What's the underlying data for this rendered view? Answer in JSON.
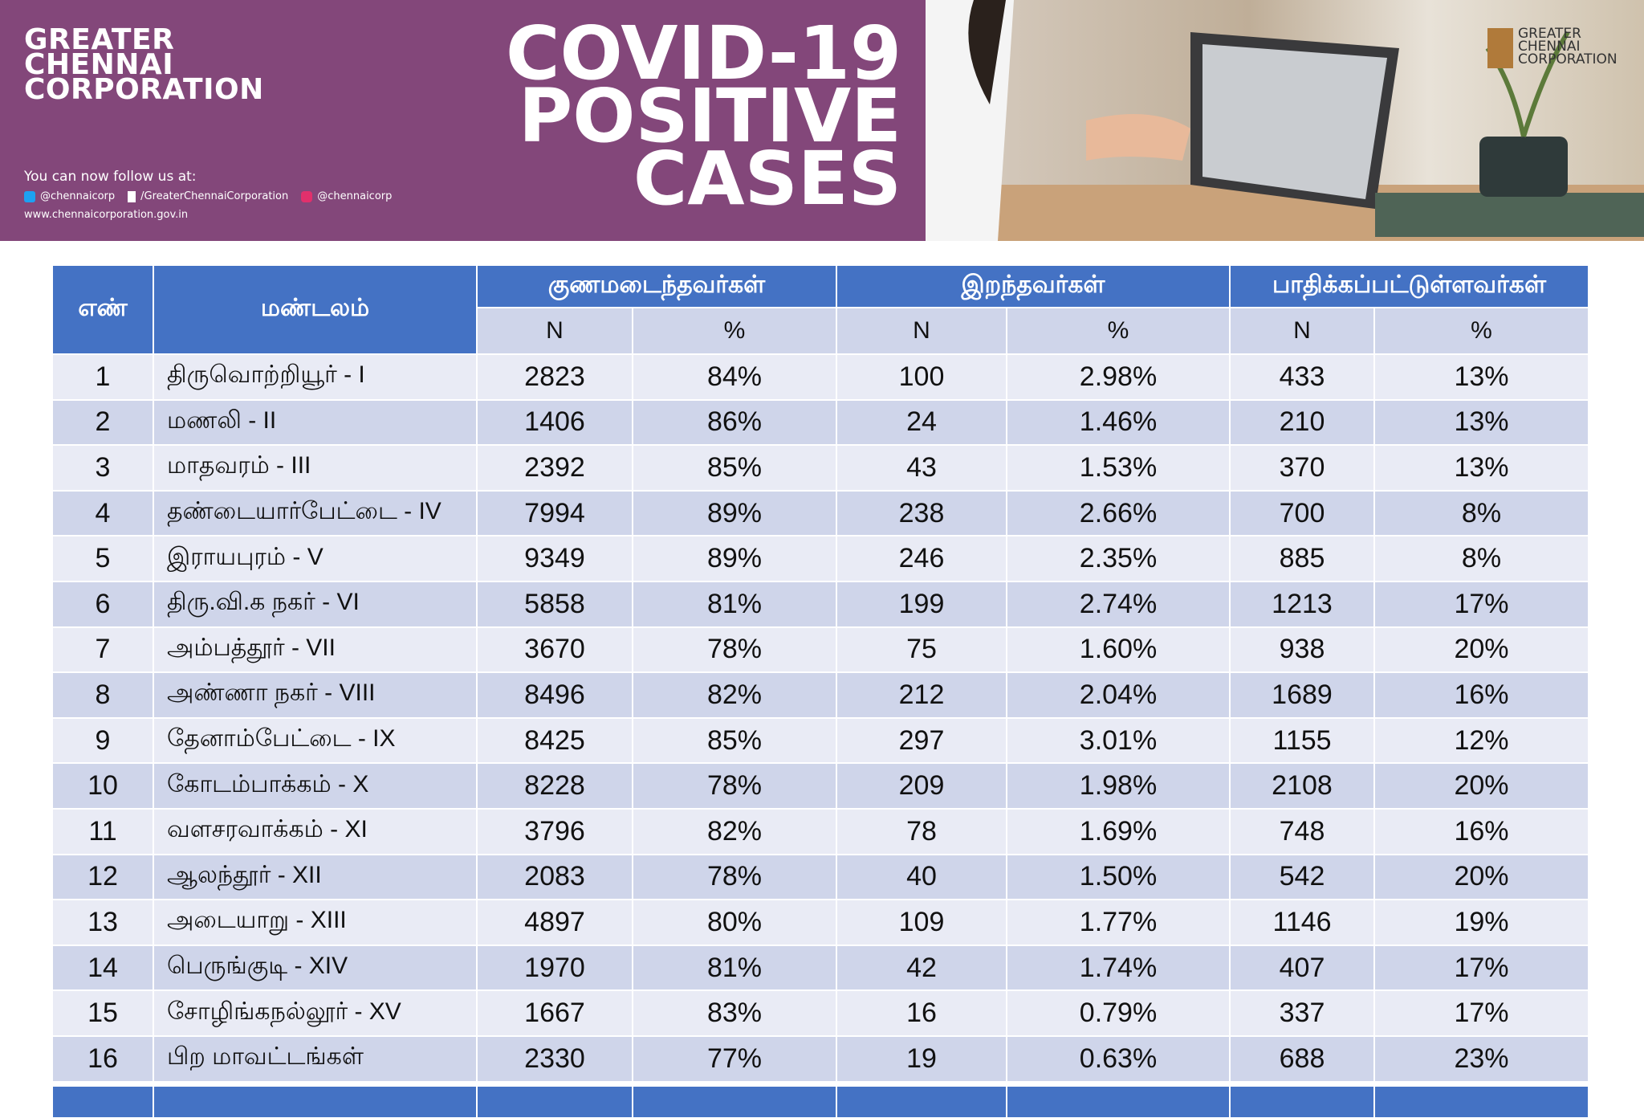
{
  "header": {
    "org_name": [
      "GREATER",
      "CHENNAI",
      "CORPORATION"
    ],
    "title": [
      "COVID-19",
      "POSITIVE",
      "CASES"
    ],
    "follow": "You can now follow us at:",
    "twitter": "@chennaicorp",
    "facebook": "/GreaterChennaiCorporation",
    "instagram": "@chennaicorp",
    "website": "www.chennaicorporation.gov.in",
    "logo_text": [
      "GREATER",
      "CHENNAI",
      "CORPORATION"
    ]
  },
  "table": {
    "headers": [
      "எண்",
      "மண்டலம்"
    ],
    "groups": [
      "குணமடைந்தவர்கள்",
      "இறந்தவர்கள்",
      "பாதிக்கப்பட்டுள்ளவர்கள்"
    ],
    "subheaders": [
      "N",
      "%",
      "N",
      "%",
      "N",
      "%"
    ],
    "rows": [
      [
        "1",
        "திருவொற்றியூர் - I",
        "2823",
        "84%",
        "100",
        "2.98%",
        "433",
        "13%"
      ],
      [
        "2",
        "மணலி - II",
        "1406",
        "86%",
        "24",
        "1.46%",
        "210",
        "13%"
      ],
      [
        "3",
        "மாதவரம் - III",
        "2392",
        "85%",
        "43",
        "1.53%",
        "370",
        "13%"
      ],
      [
        "4",
        "தண்டையார்பேட்டை - IV",
        "7994",
        "89%",
        "238",
        "2.66%",
        "700",
        "8%"
      ],
      [
        "5",
        "இராயபுரம் - V",
        "9349",
        "89%",
        "246",
        "2.35%",
        "885",
        "8%"
      ],
      [
        "6",
        "திரு.வி.க நகர் - VI",
        "5858",
        "81%",
        "199",
        "2.74%",
        "1213",
        "17%"
      ],
      [
        "7",
        "அம்பத்தூர் - VII",
        "3670",
        "78%",
        "75",
        "1.60%",
        "938",
        "20%"
      ],
      [
        "8",
        "அண்ணா நகர் - VIII",
        "8496",
        "82%",
        "212",
        "2.04%",
        "1689",
        "16%"
      ],
      [
        "9",
        "தேனாம்பேட்டை - IX",
        "8425",
        "85%",
        "297",
        "3.01%",
        "1155",
        "12%"
      ],
      [
        "10",
        "கோடம்பாக்கம் - X",
        "8228",
        "78%",
        "209",
        "1.98%",
        "2108",
        "20%"
      ],
      [
        "11",
        "வளசரவாக்கம் - XI",
        "3796",
        "82%",
        "78",
        "1.69%",
        "748",
        "16%"
      ],
      [
        "12",
        "ஆலந்தூர் - XII",
        "2083",
        "78%",
        "40",
        "1.50%",
        "542",
        "20%"
      ],
      [
        "13",
        "அடையாறு - XIII",
        "4897",
        "80%",
        "109",
        "1.77%",
        "1146",
        "19%"
      ],
      [
        "14",
        "பெருங்குடி - XIV",
        "1970",
        "81%",
        "42",
        "1.74%",
        "407",
        "17%"
      ],
      [
        "15",
        "சோழிங்கநல்லூர் - XV",
        "1667",
        "83%",
        "16",
        "0.79%",
        "337",
        "17%"
      ],
      [
        "16",
        "பிற மாவட்டங்கள்",
        "2330",
        "77%",
        "19",
        "0.63%",
        "688",
        "23%"
      ]
    ]
  }
}
